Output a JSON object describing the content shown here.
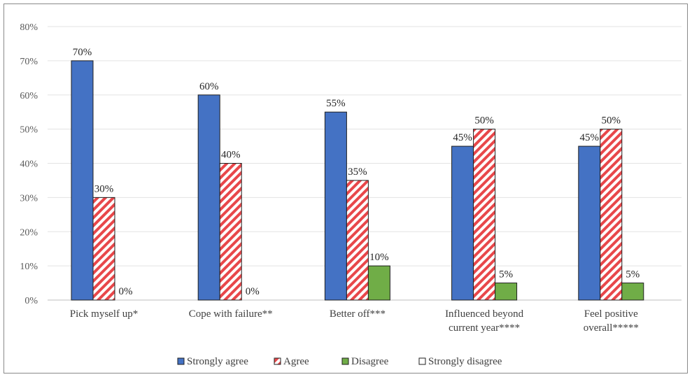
{
  "chart_data": {
    "type": "bar",
    "categories": [
      [
        "Pick myself up*"
      ],
      [
        "Cope with failure**"
      ],
      [
        "Better off***"
      ],
      [
        "Influenced beyond",
        "current year****"
      ],
      [
        "Feel positive",
        "overall*****"
      ]
    ],
    "series": [
      {
        "name": "Strongly agree",
        "values": [
          70,
          60,
          55,
          45,
          45
        ],
        "labels": [
          "70%",
          "60%",
          "55%",
          "45%",
          "45%"
        ],
        "color": "#4472c4",
        "pattern": "solid"
      },
      {
        "name": "Agree",
        "values": [
          30,
          40,
          35,
          50,
          50
        ],
        "labels": [
          "30%",
          "40%",
          "35%",
          "50%",
          "50%"
        ],
        "color": "#e8474a",
        "pattern": "diagonal"
      },
      {
        "name": "Disagree",
        "values": [
          0,
          0,
          10,
          5,
          5
        ],
        "labels": [
          "0%",
          "0%",
          "10%",
          "5%",
          "5%"
        ],
        "color": "#70ad47",
        "pattern": "solid"
      },
      {
        "name": "Strongly disagree",
        "values": [
          0,
          0,
          0,
          0,
          0
        ],
        "labels": [],
        "color": "#ffffff",
        "pattern": "outline"
      }
    ],
    "yticks": [
      "0%",
      "10%",
      "20%",
      "30%",
      "40%",
      "50%",
      "60%",
      "70%",
      "80%"
    ],
    "ylim": [
      0,
      80
    ],
    "grid": true,
    "legend_position": "bottom"
  }
}
